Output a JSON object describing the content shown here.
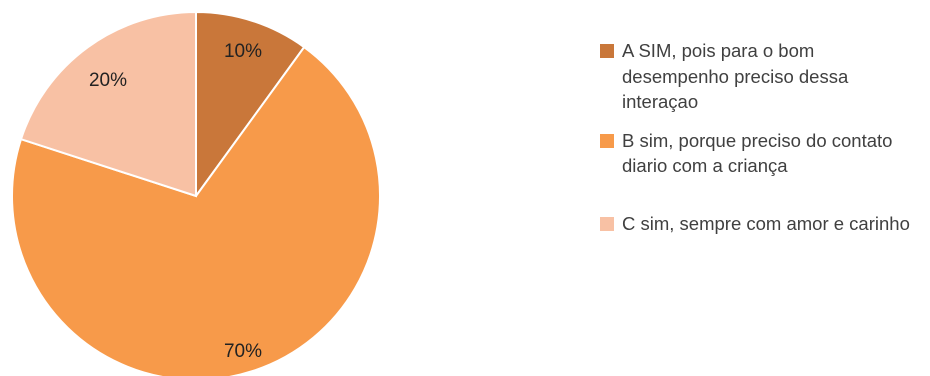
{
  "chart_data": {
    "type": "pie",
    "title": "",
    "start_angle_deg": 0,
    "direction": "clockwise",
    "slices": [
      {
        "name": "A SIM, pois para o bom desempenho preciso dessa interaçao",
        "value": 10,
        "label": "10%",
        "color": "#c9773a"
      },
      {
        "name": "B sim, porque preciso do contato diario com a criança",
        "value": 70,
        "label": "70%",
        "color": "#f79a4a"
      },
      {
        "name": "C  sim, sempre com amor e carinho",
        "value": 20,
        "label": "20%",
        "color": "#f8c1a4"
      }
    ],
    "legend_position": "right",
    "legend": [
      {
        "label": "A SIM, pois para o bom desempenho preciso dessa interaçao",
        "color": "#c9773a"
      },
      {
        "label": "B sim, porque preciso do contato diario com a criança",
        "color": "#f79a4a"
      },
      {
        "label": "C  sim, sempre com amor e carinho",
        "color": "#f8c1a4"
      }
    ]
  }
}
